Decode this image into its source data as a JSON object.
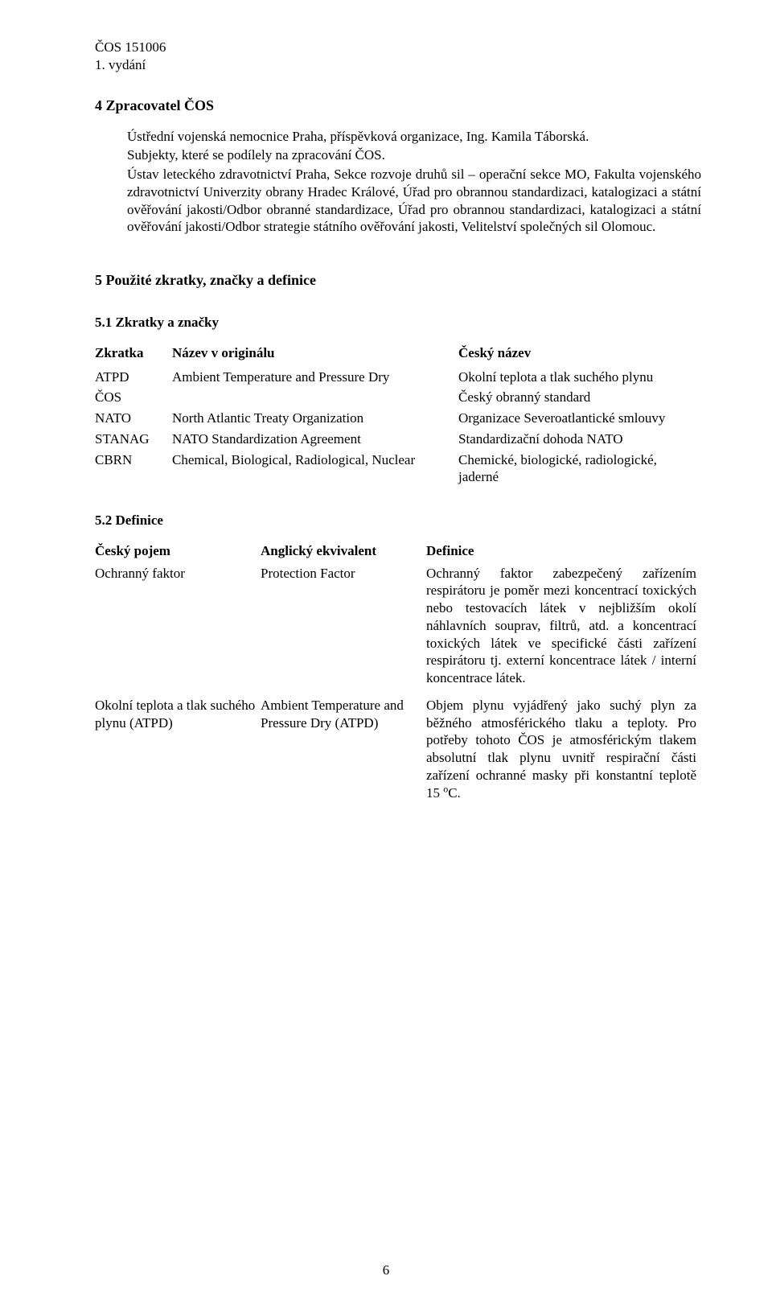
{
  "header": {
    "doc_code": "ČOS 151006",
    "edition": "1. vydání"
  },
  "section4": {
    "heading": "4  Zpracovatel ČOS",
    "p1": "Ústřední vojenská nemocnice Praha, příspěvková organizace, Ing. Kamila Táborská.",
    "p2": "Subjekty, které se podílely na zpracování ČOS.",
    "p3": "Ústav leteckého zdravotnictví Praha, Sekce rozvoje druhů sil – operační sekce MO, Fakulta vojenského zdravotnictví Univerzity obrany Hradec Králové, Úřad pro obrannou standardizaci, katalogizaci a státní ověřování jakosti/Odbor obranné standardizace, Úřad pro obrannou standardizaci, katalogizaci a státní ověřování jakosti/Odbor strategie státního ověřování jakosti, Velitelství společných sil Olomouc."
  },
  "section5": {
    "heading": "5  Použité zkratky, značky a definice"
  },
  "sec51": {
    "heading": "5.1 Zkratky a značky",
    "col_abbr": "Zkratka",
    "col_orig": "Název v originálu",
    "col_cz": "Český název",
    "rows": [
      {
        "abbr": "ATPD",
        "orig": "Ambient Temperature and Pressure Dry",
        "cz": "Okolní teplota a tlak suchého plynu"
      },
      {
        "abbr": "ČOS",
        "orig": "",
        "cz": "Český obranný standard"
      },
      {
        "abbr": "NATO",
        "orig": "North Atlantic Treaty Organization",
        "cz": "Organizace Severoatlantické smlouvy"
      },
      {
        "abbr": "STANAG",
        "orig": "NATO Standardization Agreement",
        "cz": "Standardizační dohoda NATO"
      },
      {
        "abbr": "CBRN",
        "orig": "Chemical, Biological, Radiological, Nuclear",
        "cz": "Chemické, biologické, radiologické, jaderné"
      }
    ]
  },
  "sec52": {
    "heading": "5.2 Definice",
    "col_term": "Český pojem",
    "col_en": "Anglický ekvivalent",
    "col_def": "Definice",
    "rows": [
      {
        "term": "Ochranný faktor",
        "en": "Protection Factor",
        "def": "Ochranný faktor zabezpečený zařízením respirátoru je poměr mezi koncentrací toxických nebo testovacích látek v nejbližším okolí náhlavních souprav, filtrů, atd. a koncentrací toxických látek ve specifické části zařízení respirátoru tj. externí koncentrace látek / interní koncentrace látek."
      },
      {
        "term": "Okolní teplota a tlak suchého plynu (ATPD)",
        "en": "Ambient Temperature and Pressure Dry (ATPD)",
        "def_prefix": "Objem plynu vyjádřený jako suchý plyn za běžného atmosférického tlaku a teploty. Pro potřeby tohoto ČOS je atmosférickým tlakem absolutní tlak plynu uvnitř respirační části zařízení ochranné masky při konstantní teplotě 15 ",
        "def_sup": "o",
        "def_suffix": "C."
      }
    ]
  },
  "page_number": "6",
  "colors": {
    "text": "#000000",
    "background": "#ffffff"
  },
  "typography": {
    "body_font": "Times New Roman",
    "body_size_pt": 12,
    "heading_weight": "bold"
  }
}
